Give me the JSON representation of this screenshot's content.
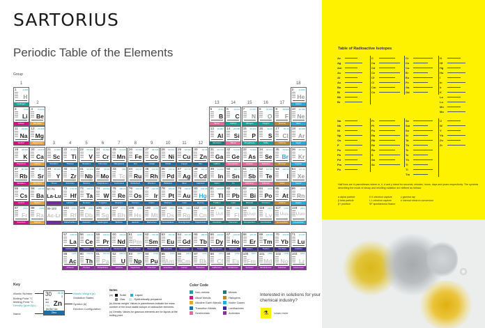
{
  "brand": "SARTORIUS",
  "title": "Periodic Table of the Elements",
  "group_label": "Group",
  "groups": [
    "1",
    "2",
    "3",
    "4",
    "5",
    "6",
    "7",
    "8",
    "9",
    "10",
    "11",
    "12",
    "13",
    "14",
    "15",
    "16",
    "17",
    "18"
  ],
  "colors": {
    "nonmetal": "#17a39b",
    "alkali": "#cf1480",
    "alkaline": "#e6a23c",
    "transition": "#1c6ea4",
    "semimetal": "#e56a9b",
    "metal": "#157d7d",
    "halogen": "#b58c2f",
    "noble": "#2aa9df",
    "lanthanide": "#3b2c8c",
    "actinide": "#8c2e9c",
    "accent_yellow": "#fff200"
  },
  "placeholders": [
    {
      "range": "57-71",
      "symbol": "La-Lu"
    },
    {
      "range": "89-103",
      "symbol": "Ac-Lr"
    }
  ],
  "elements": [
    [
      1,
      "H",
      "Hydrogen",
      "1.008",
      "nonmetal",
      "g"
    ],
    [
      2,
      "He",
      "Helium",
      "4.0026",
      "noble",
      "g"
    ],
    [
      3,
      "Li",
      "Lithium",
      "6.94",
      "alkali",
      "s"
    ],
    [
      4,
      "Be",
      "Beryllium",
      "9.0122",
      "alkaline",
      "s"
    ],
    [
      5,
      "B",
      "Boron",
      "10.81",
      "semimetal",
      "s"
    ],
    [
      6,
      "C",
      "Carbon",
      "12.011",
      "nonmetal",
      "s"
    ],
    [
      7,
      "N",
      "Nitrogen",
      "14.007",
      "nonmetal",
      "g"
    ],
    [
      8,
      "O",
      "Oxygen",
      "15.999",
      "nonmetal",
      "g"
    ],
    [
      9,
      "F",
      "Fluorine",
      "18.998",
      "halogen",
      "g"
    ],
    [
      10,
      "Ne",
      "Neon",
      "20.180",
      "noble",
      "g"
    ],
    [
      11,
      "Na",
      "Sodium",
      "22.990",
      "alkali",
      "s"
    ],
    [
      12,
      "Mg",
      "Magnesium",
      "24.305",
      "alkaline",
      "s"
    ],
    [
      13,
      "Al",
      "Aluminum",
      "26.982",
      "metal",
      "s"
    ],
    [
      14,
      "Si",
      "Silicon",
      "28.085",
      "semimetal",
      "s"
    ],
    [
      15,
      "P",
      "Phosphorus",
      "30.974",
      "nonmetal",
      "s"
    ],
    [
      16,
      "S",
      "Sulfur",
      "32.06",
      "nonmetal",
      "s"
    ],
    [
      17,
      "Cl",
      "Chlorine",
      "35.45",
      "halogen",
      "g"
    ],
    [
      18,
      "Ar",
      "Argon",
      "39.948",
      "noble",
      "g"
    ],
    [
      19,
      "K",
      "Potassium",
      "39.098",
      "alkali",
      "s"
    ],
    [
      20,
      "Ca",
      "Calcium",
      "40.078",
      "alkaline",
      "s"
    ],
    [
      21,
      "Sc",
      "Scandium",
      "44.956",
      "transition",
      "s"
    ],
    [
      22,
      "Ti",
      "Titanium",
      "47.867",
      "transition",
      "s"
    ],
    [
      23,
      "V",
      "Vanadium",
      "50.942",
      "transition",
      "s"
    ],
    [
      24,
      "Cr",
      "Chromium",
      "51.996",
      "transition",
      "s"
    ],
    [
      25,
      "Mn",
      "Manganese",
      "54.938",
      "transition",
      "s"
    ],
    [
      26,
      "Fe",
      "Iron",
      "55.845",
      "transition",
      "s"
    ],
    [
      27,
      "Co",
      "Cobalt",
      "58.933",
      "transition",
      "s"
    ],
    [
      28,
      "Ni",
      "Nickel",
      "58.693",
      "transition",
      "s"
    ],
    [
      29,
      "Cu",
      "Copper",
      "63.546",
      "transition",
      "s"
    ],
    [
      30,
      "Zn",
      "Zinc",
      "65.38",
      "transition",
      "s"
    ],
    [
      31,
      "Ga",
      "Gallium",
      "69.723",
      "metal",
      "s"
    ],
    [
      32,
      "Ge",
      "Germanium",
      "72.630",
      "semimetal",
      "s"
    ],
    [
      33,
      "As",
      "Arsenic",
      "74.922",
      "semimetal",
      "s"
    ],
    [
      34,
      "Se",
      "Selenium",
      "78.971",
      "semimetal",
      "s"
    ],
    [
      35,
      "Br",
      "Bromine",
      "79.904",
      "halogen",
      "l"
    ],
    [
      36,
      "Kr",
      "Krypton",
      "83.798",
      "noble",
      "g"
    ],
    [
      37,
      "Rb",
      "Rubidium",
      "85.468",
      "alkali",
      "s"
    ],
    [
      38,
      "Sr",
      "Strontium",
      "87.62",
      "alkaline",
      "s"
    ],
    [
      39,
      "Y",
      "Yttrium",
      "88.906",
      "transition",
      "s"
    ],
    [
      40,
      "Zr",
      "Zirconium",
      "91.224",
      "transition",
      "s"
    ],
    [
      41,
      "Nb",
      "Niobium",
      "92.906",
      "transition",
      "s"
    ],
    [
      42,
      "Mo",
      "Molybdenum",
      "95.95",
      "transition",
      "s"
    ],
    [
      43,
      "Tc",
      "Technetium",
      "(98)",
      "transition",
      "x"
    ],
    [
      44,
      "Ru",
      "Ruthenium",
      "101.07",
      "transition",
      "s"
    ],
    [
      45,
      "Rh",
      "Rhodium",
      "102.91",
      "transition",
      "s"
    ],
    [
      46,
      "Pd",
      "Palladium",
      "106.42",
      "transition",
      "s"
    ],
    [
      47,
      "Ag",
      "Silver",
      "107.87",
      "transition",
      "s"
    ],
    [
      48,
      "Cd",
      "Cadmium",
      "112.41",
      "transition",
      "s"
    ],
    [
      49,
      "In",
      "Indium",
      "114.82",
      "metal",
      "s"
    ],
    [
      50,
      "Sn",
      "Tin",
      "118.71",
      "metal",
      "s"
    ],
    [
      51,
      "Sb",
      "Antimony",
      "121.76",
      "semimetal",
      "s"
    ],
    [
      52,
      "Te",
      "Tellurium",
      "127.60",
      "semimetal",
      "s"
    ],
    [
      53,
      "I",
      "Iodine",
      "126.90",
      "halogen",
      "s"
    ],
    [
      54,
      "Xe",
      "Xenon",
      "131.29",
      "noble",
      "g"
    ],
    [
      55,
      "Cs",
      "Cesium",
      "132.91",
      "alkali",
      "s"
    ],
    [
      56,
      "Ba",
      "Barium",
      "137.33",
      "alkaline",
      "s"
    ],
    [
      57,
      "La",
      "Lanthanum",
      "138.91",
      "lanthanide",
      "s"
    ],
    [
      58,
      "Ce",
      "Cerium",
      "140.12",
      "lanthanide",
      "s"
    ],
    [
      59,
      "Pr",
      "Praseodymium",
      "140.91",
      "lanthanide",
      "s"
    ],
    [
      60,
      "Nd",
      "Neodymium",
      "144.24",
      "lanthanide",
      "s"
    ],
    [
      61,
      "Pm",
      "Promethium",
      "(145)",
      "lanthanide",
      "x"
    ],
    [
      62,
      "Sm",
      "Samarium",
      "150.36",
      "lanthanide",
      "s"
    ],
    [
      63,
      "Eu",
      "Europium",
      "151.96",
      "lanthanide",
      "s"
    ],
    [
      64,
      "Gd",
      "Gadolinium",
      "157.25",
      "lanthanide",
      "s"
    ],
    [
      65,
      "Tb",
      "Terbium",
      "158.93",
      "lanthanide",
      "s"
    ],
    [
      66,
      "Dy",
      "Dysprosium",
      "162.50",
      "lanthanide",
      "s"
    ],
    [
      67,
      "Ho",
      "Holmium",
      "164.93",
      "lanthanide",
      "s"
    ],
    [
      68,
      "Er",
      "Erbium",
      "167.26",
      "lanthanide",
      "s"
    ],
    [
      69,
      "Tm",
      "Thulium",
      "168.93",
      "lanthanide",
      "s"
    ],
    [
      70,
      "Yb",
      "Ytterbium",
      "173.05",
      "lanthanide",
      "s"
    ],
    [
      71,
      "Lu",
      "Lutetium",
      "174.97",
      "lanthanide",
      "s"
    ],
    [
      72,
      "Hf",
      "Hafnium",
      "178.49",
      "transition",
      "s"
    ],
    [
      73,
      "Ta",
      "Tantalum",
      "180.95",
      "transition",
      "s"
    ],
    [
      74,
      "W",
      "Tungsten",
      "183.84",
      "transition",
      "s"
    ],
    [
      75,
      "Re",
      "Rhenium",
      "186.21",
      "transition",
      "s"
    ],
    [
      76,
      "Os",
      "Osmium",
      "190.23",
      "transition",
      "s"
    ],
    [
      77,
      "Ir",
      "Iridium",
      "192.22",
      "transition",
      "s"
    ],
    [
      78,
      "Pt",
      "Platinum",
      "195.08",
      "transition",
      "s"
    ],
    [
      79,
      "Au",
      "Gold",
      "196.97",
      "transition",
      "s"
    ],
    [
      80,
      "Hg",
      "Mercury",
      "200.59",
      "transition",
      "l"
    ],
    [
      81,
      "Tl",
      "Thallium",
      "204.38",
      "metal",
      "s"
    ],
    [
      82,
      "Pb",
      "Lead",
      "207.2",
      "metal",
      "s"
    ],
    [
      83,
      "Bi",
      "Bismuth",
      "208.98",
      "metal",
      "s"
    ],
    [
      84,
      "Po",
      "Polonium",
      "(209)",
      "metal",
      "s"
    ],
    [
      85,
      "At",
      "Astatine",
      "(210)",
      "halogen",
      "s"
    ],
    [
      86,
      "Rn",
      "Radon",
      "(222)",
      "noble",
      "g"
    ],
    [
      87,
      "Fr",
      "Francium",
      "(223)",
      "alkali",
      "x"
    ],
    [
      88,
      "Ra",
      "Radium",
      "(226)",
      "alkaline",
      "x"
    ],
    [
      89,
      "Ac",
      "Actinium",
      "(227)",
      "actinide",
      "s"
    ],
    [
      90,
      "Th",
      "Thorium",
      "232.04",
      "actinide",
      "s"
    ],
    [
      91,
      "Pa",
      "Protactinium",
      "231.04",
      "actinide",
      "x"
    ],
    [
      92,
      "U",
      "Uranium",
      "238.03",
      "actinide",
      "s"
    ],
    [
      93,
      "Np",
      "Neptunium",
      "(237)",
      "actinide",
      "s"
    ],
    [
      94,
      "Pu",
      "Plutonium",
      "(244)",
      "actinide",
      "s"
    ],
    [
      95,
      "Am",
      "Americium",
      "(243)",
      "actinide",
      "x"
    ],
    [
      96,
      "Cm",
      "Curium",
      "(247)",
      "actinide",
      "x"
    ],
    [
      97,
      "Bk",
      "Berkelium",
      "(247)",
      "actinide",
      "x"
    ],
    [
      98,
      "Cf",
      "Californium",
      "(251)",
      "actinide",
      "x"
    ],
    [
      99,
      "Es",
      "Einsteinium",
      "(252)",
      "actinide",
      "x"
    ],
    [
      100,
      "Fm",
      "Fermium",
      "(257)",
      "actinide",
      "x"
    ],
    [
      101,
      "Md",
      "Mendelevium",
      "(258)",
      "actinide",
      "x"
    ],
    [
      102,
      "No",
      "Nobelium",
      "(259)",
      "actinide",
      "x"
    ],
    [
      103,
      "Lr",
      "Lawrencium",
      "(262)",
      "actinide",
      "x"
    ],
    [
      104,
      "Rf",
      "Rutherfordium",
      "(267)",
      "transition",
      "x"
    ],
    [
      105,
      "Db",
      "Dubnium",
      "(268)",
      "transition",
      "x"
    ],
    [
      106,
      "Sg",
      "Seaborgium",
      "(271)",
      "transition",
      "x"
    ],
    [
      107,
      "Bh",
      "Bohrium",
      "(272)",
      "transition",
      "x"
    ],
    [
      108,
      "Hs",
      "Hassium",
      "(270)",
      "transition",
      "x"
    ],
    [
      109,
      "Mt",
      "Meitnerium",
      "(276)",
      "transition",
      "x"
    ],
    [
      110,
      "Ds",
      "Darmstadtium",
      "(281)",
      "transition",
      "x"
    ],
    [
      111,
      "Rg",
      "Roentgenium",
      "(280)",
      "transition",
      "x"
    ],
    [
      112,
      "Cn",
      "Copernicium",
      "(285)",
      "transition",
      "x"
    ],
    [
      113,
      "Uut",
      "Ununtrium",
      "(284)",
      "metal",
      "x"
    ],
    [
      114,
      "Fl",
      "Flerovium",
      "(289)",
      "metal",
      "x"
    ],
    [
      115,
      "Uup",
      "Ununpentium",
      "(288)",
      "metal",
      "x"
    ],
    [
      116,
      "Lv",
      "Livermorium",
      "(293)",
      "metal",
      "x"
    ],
    [
      117,
      "Uus",
      "Ununseptium",
      "(294)",
      "halogen",
      "x"
    ],
    [
      118,
      "Uuo",
      "Ununoctium",
      "(294)",
      "noble",
      "x"
    ]
  ],
  "key": {
    "heading": "Key",
    "atomic_number": "30",
    "atomic_weight": "65.38",
    "oxidation": "2",
    "boiling": "907",
    "melting": "420",
    "density": "7.14",
    "symbol": "Zn",
    "config": "[Ar]3d¹⁰4s²",
    "name": "Zinc",
    "labels_left": [
      "Atomic Number",
      "Boiling Point °C",
      "Melting Point °C",
      "Density (g/cm3)(c)",
      "Name"
    ],
    "labels_right": [
      "Atomic Weight (a)",
      "Oxidation States",
      "Symbol (b)",
      "Electron Configuration"
    ]
  },
  "notes": {
    "heading": "Notes",
    "a": "(a)",
    "solid": "Solid",
    "liquid": "Liquid",
    "gas": "Gas",
    "synthetic": "Synthetically prepared",
    "b": "(b) Atomic weight: Values in parentheses indicate the mass number of the most stable isotope of radioactive elements",
    "c": "(c) Density: Values for gaseous elements are for liquids at the boiling point."
  },
  "color_code": {
    "heading": "Color Code",
    "items": [
      {
        "label": "Non-metals",
        "cat": "nonmetal"
      },
      {
        "label": "Metals",
        "cat": "metal"
      },
      {
        "label": "Alkali Metals",
        "cat": "alkali"
      },
      {
        "label": "Halogens",
        "cat": "halogen"
      },
      {
        "label": "Alkaline Earth Metals",
        "cat": "alkaline"
      },
      {
        "label": "Noble Gases",
        "cat": "noble"
      },
      {
        "label": "Transition Metals",
        "cat": "transition"
      },
      {
        "label": "Lanthanides",
        "cat": "lanthanide"
      },
      {
        "label": "Semimetals",
        "cat": "semimetal"
      },
      {
        "label": "Actinides",
        "cat": "actinide"
      }
    ]
  },
  "cta": {
    "text": "Interested in solutions for your chemical industry?",
    "link": "Learn more"
  },
  "isotopes": {
    "title": "Table of Radioactive Isotopes",
    "block1": [
      [
        "Ac",
        "Ag",
        "Am",
        "As",
        "At",
        "Au",
        "Ba",
        "Bi",
        "Bk",
        "Br"
      ],
      [
        "C",
        "Ca",
        "Cd",
        "Ce",
        "Cf",
        "Cl",
        "Cm",
        "Co"
      ],
      [
        "Cr",
        "Cs",
        "Cu",
        "Er",
        "Eu",
        "Fe",
        "Ga",
        "Gd"
      ],
      [
        "H",
        "Hf",
        "Hg",
        "Ho",
        "I",
        "In",
        "Ir",
        "K",
        "La",
        "Lu",
        "Mn",
        "Mo"
      ]
    ],
    "block2": [
      [
        "Na",
        "Nb",
        "Ni",
        "Np",
        "Os",
        "P",
        "Pa",
        "Pb",
        "Pd",
        "Pm",
        "Po"
      ],
      [
        "Pr",
        "Pt",
        "Pu",
        "Ra",
        "Rb",
        "Re",
        "Ru",
        "S",
        "Sb",
        "Sc"
      ],
      [
        "Se",
        "Sm",
        "Sn",
        "Sr",
        "Ta",
        "Tb",
        "Tc",
        "Te",
        "Th",
        "Ti",
        "Tl",
        "Tm"
      ],
      [
        "U",
        "W",
        "Y",
        "Yb",
        "Zn",
        "Zr"
      ]
    ],
    "note": "Half lives are in parentheses where m, h, d and y stand for seconds, minutes, hours, days and years respectively. The symbols describing the mode of decay and resulting radiation are defined as follows:",
    "legend": [
      "α  alpha particle",
      "β  beta particle",
      "β+  positron",
      "K  K-electron capture",
      "L  L-electron capture",
      "SF  spontaneous fission",
      "γ  gamma ray",
      "e  internal electron conversion"
    ]
  }
}
